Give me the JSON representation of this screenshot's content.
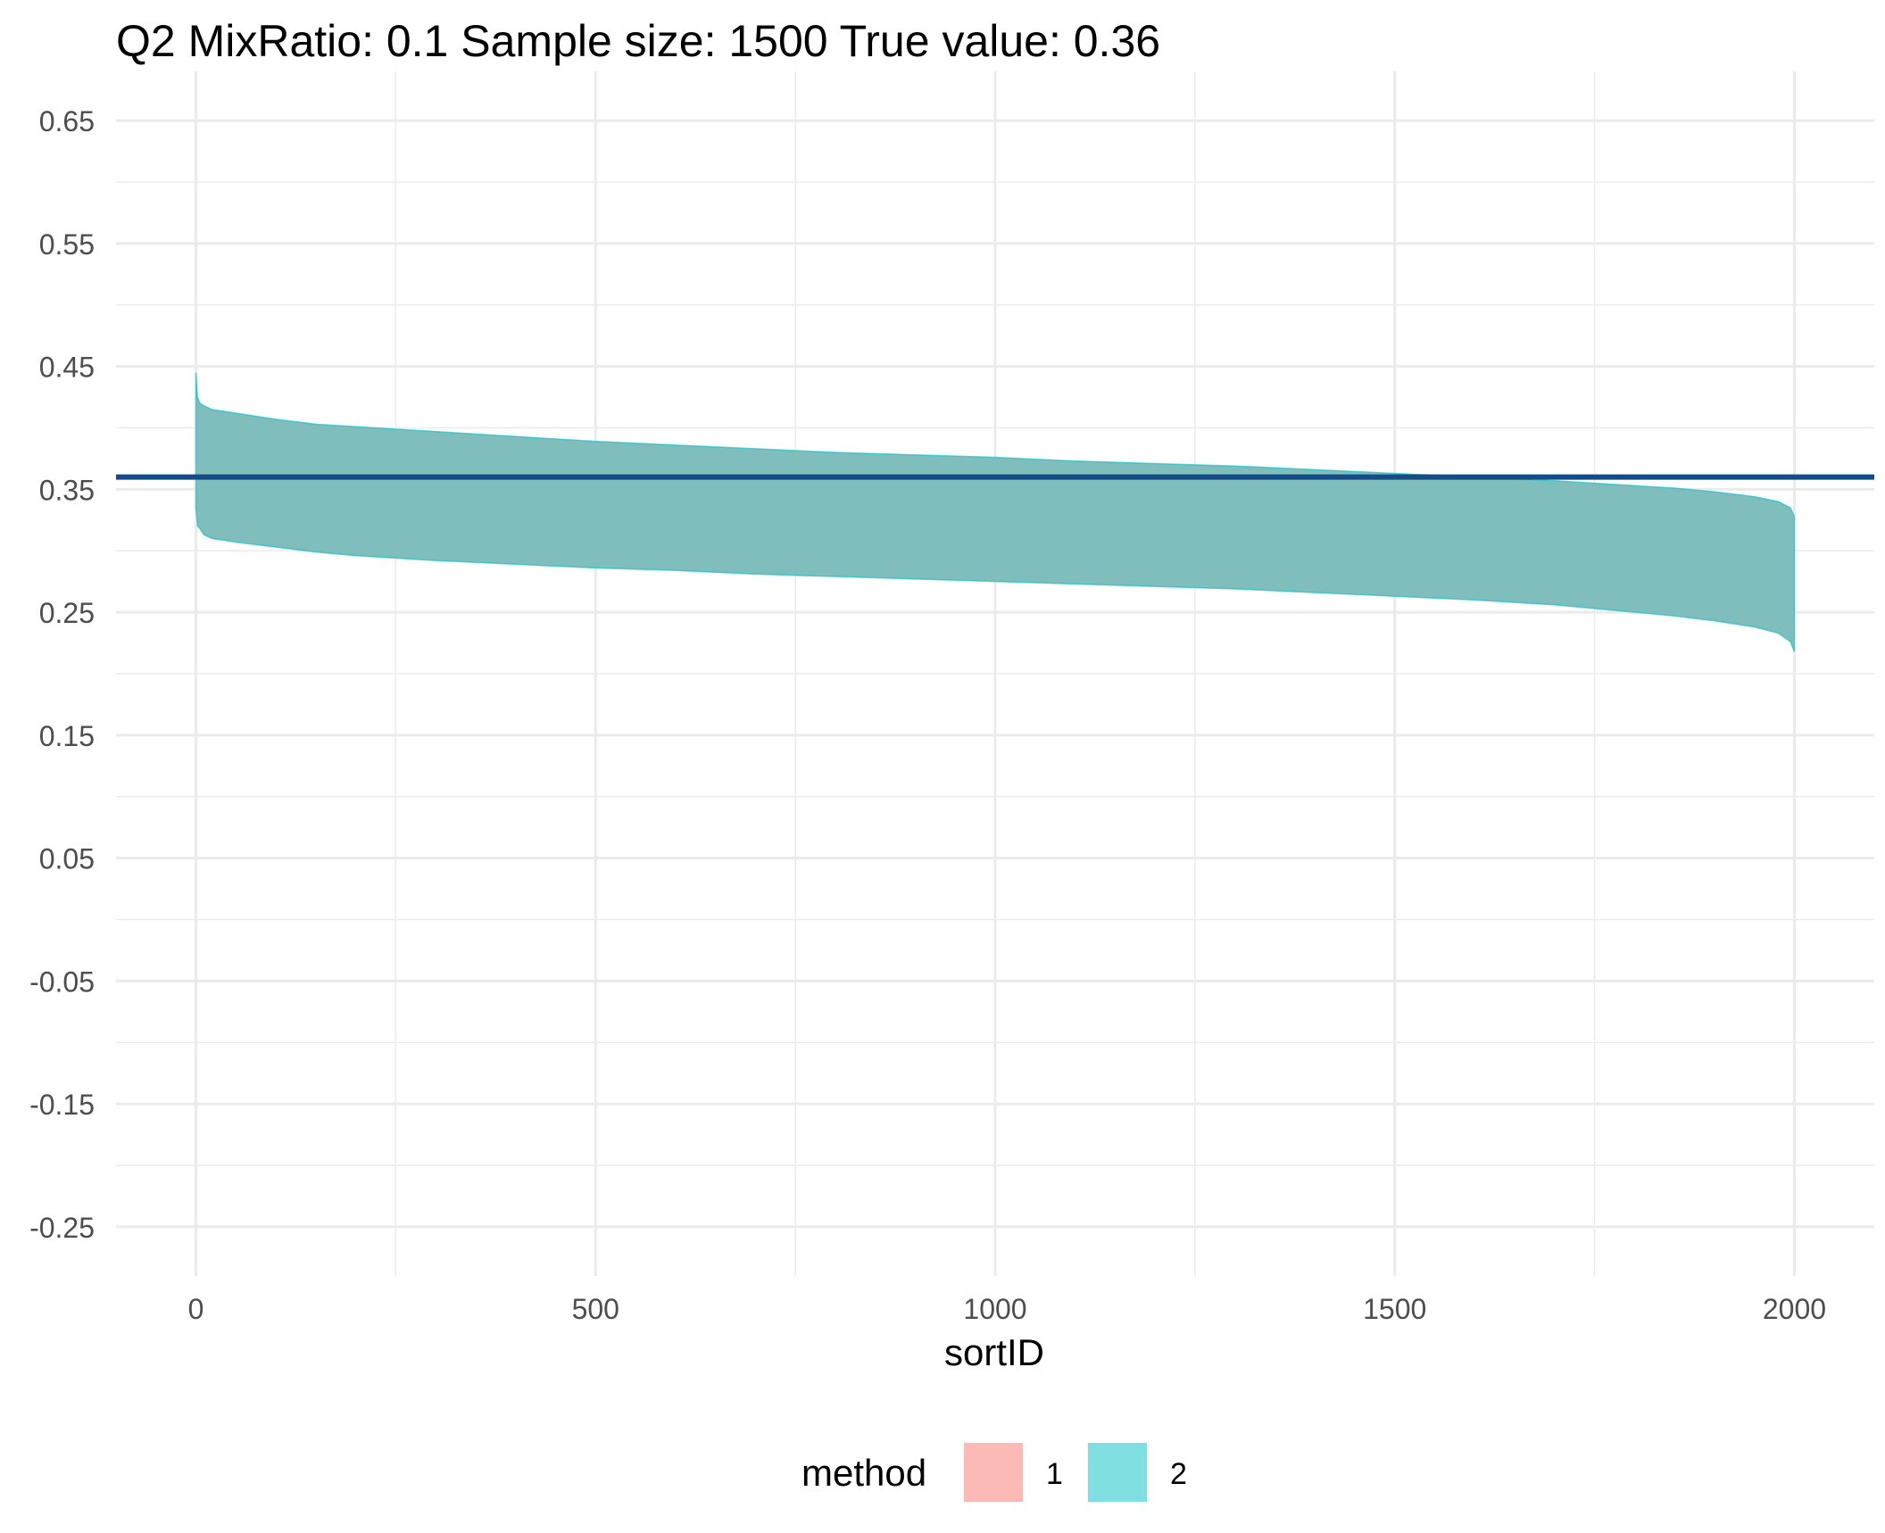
{
  "chart_data": {
    "type": "area",
    "title": "Q2  MixRatio: 0.1  Sample size: 1500  True value: 0.36",
    "xlabel": "sortID",
    "ylabel": "",
    "xlim": [
      -100,
      2100
    ],
    "ylim": [
      -0.29,
      0.69
    ],
    "x_ticks": [
      0,
      500,
      1000,
      1500,
      2000
    ],
    "x_tick_labels": [
      "0",
      "500",
      "1000",
      "1500",
      "2000"
    ],
    "y_ticks": [
      0.65,
      0.55,
      0.45,
      0.35,
      0.25,
      0.15,
      0.05,
      -0.05,
      -0.15,
      -0.25
    ],
    "y_tick_labels": [
      "0.65",
      "0.55",
      "0.45",
      "0.35",
      "0.25",
      "0.15",
      "0.05",
      "-0.05",
      "-0.15",
      "-0.25"
    ],
    "grid": true,
    "legend": {
      "title": "method",
      "placement": "bottom",
      "entries": [
        {
          "label": "1",
          "color": "#F8766D"
        },
        {
          "label": "2",
          "color": "#00BFC4"
        }
      ]
    },
    "reference_line": {
      "y": 0.36,
      "color": "#154C85"
    },
    "series": [
      {
        "name": "2",
        "color": "#00BFC4",
        "fill_color": "#7DBCBC",
        "x": [
          0,
          2,
          5,
          10,
          20,
          50,
          100,
          150,
          200,
          300,
          400,
          500,
          600,
          700,
          800,
          900,
          1000,
          1100,
          1200,
          1300,
          1400,
          1500,
          1600,
          1700,
          1750,
          1800,
          1850,
          1900,
          1950,
          1980,
          1995,
          2000
        ],
        "upper": [
          0.445,
          0.425,
          0.42,
          0.418,
          0.415,
          0.412,
          0.407,
          0.403,
          0.401,
          0.397,
          0.393,
          0.389,
          0.386,
          0.383,
          0.38,
          0.378,
          0.376,
          0.373,
          0.371,
          0.369,
          0.366,
          0.363,
          0.36,
          0.357,
          0.355,
          0.353,
          0.351,
          0.348,
          0.344,
          0.34,
          0.335,
          0.328
        ],
        "lower": [
          0.335,
          0.32,
          0.318,
          0.313,
          0.31,
          0.307,
          0.303,
          0.299,
          0.296,
          0.292,
          0.289,
          0.286,
          0.284,
          0.281,
          0.279,
          0.277,
          0.275,
          0.273,
          0.271,
          0.269,
          0.266,
          0.263,
          0.26,
          0.256,
          0.253,
          0.25,
          0.247,
          0.243,
          0.238,
          0.233,
          0.226,
          0.218
        ]
      }
    ]
  }
}
